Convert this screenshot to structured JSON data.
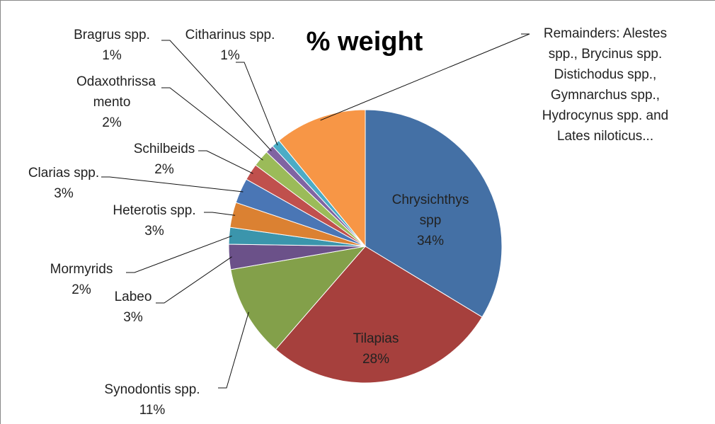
{
  "chart_data": {
    "type": "pie",
    "title": "% weight",
    "categories": [
      "Chrysichthys spp",
      "Tilapias",
      "Synodontis spp.",
      "Labeo",
      "Mormyrids",
      "Heterotis spp.",
      "Clarias spp.",
      "Schilbeids",
      "Odaxothrissa mento",
      "Bragrus spp.",
      "Citharinus spp.",
      "Remainders: Alestes spp., Brycinus spp. Distichodus spp., Gymnarchus spp., Hydrocynus spp. and Lates niloticus..."
    ],
    "values": [
      34,
      28,
      11,
      3,
      2,
      3,
      3,
      2,
      2,
      1,
      1,
      11
    ],
    "value_labels": [
      "34%",
      "28%",
      "11%",
      "3%",
      "2%",
      "3%",
      "3%",
      "2%",
      "2%",
      "1%",
      "1%",
      null
    ],
    "colors": [
      "#4470a5",
      "#a6403d",
      "#83a04a",
      "#6b5189",
      "#3b95ac",
      "#db8132",
      "#4a76b5",
      "#c0504d",
      "#9bbb59",
      "#8064a2",
      "#4bacc6",
      "#f79646"
    ]
  }
}
